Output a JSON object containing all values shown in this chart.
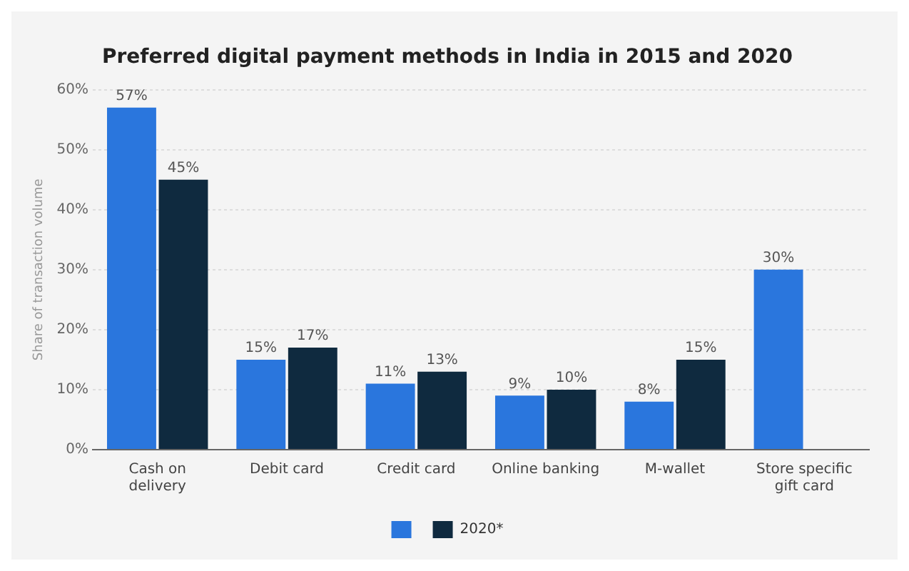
{
  "chart_data": {
    "type": "bar",
    "title": "Preferred digital payment methods in India in 2015 and 2020",
    "ylabel": "Share of transaction volume",
    "categories": [
      "Cash on delivery",
      "Debit card",
      "Credit card",
      "Online banking",
      "M-wallet",
      "Store specific gift card"
    ],
    "series": [
      {
        "color": "#2a76dd",
        "values": [
          57,
          15,
          11,
          9,
          8,
          30
        ],
        "value_labels": [
          "57%",
          "15%",
          "11%",
          "9%",
          "8%",
          "30%"
        ]
      },
      {
        "name": "2020*",
        "color": "#0f2a3f",
        "values": [
          45,
          17,
          13,
          10,
          15,
          null
        ],
        "value_labels": [
          "45%",
          "17%",
          "13%",
          "10%",
          "15%",
          null
        ]
      }
    ],
    "ylim": [
      0,
      60
    ],
    "yticks": [
      {
        "value": 0,
        "label": "0%"
      },
      {
        "value": 10,
        "label": "10%"
      },
      {
        "value": 20,
        "label": "20%"
      },
      {
        "value": 30,
        "label": "30%"
      },
      {
        "value": 40,
        "label": "40%"
      },
      {
        "value": 50,
        "label": "50%"
      },
      {
        "value": 60,
        "label": "60%"
      }
    ],
    "grid": "y",
    "legend": "bottom"
  }
}
